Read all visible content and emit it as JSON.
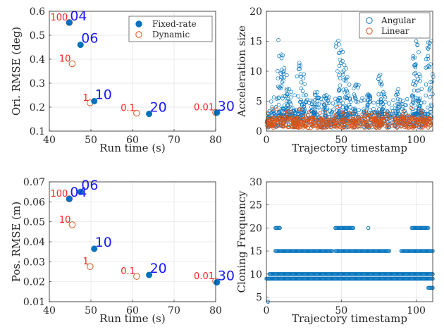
{
  "colors": {
    "fixed": "#0072BD",
    "dynamic": "#D95319",
    "angular": "#0072BD",
    "linear": "#D95319",
    "annot_red": "#ff2020",
    "annot_blue": "#1a1aff"
  },
  "chart_data": [
    {
      "id": "ori",
      "type": "scatter",
      "xlabel": "Run time (s)",
      "ylabel": "Ori. RMSE (deg)",
      "xlim": [
        40,
        80
      ],
      "ylim": [
        0.1,
        0.6
      ],
      "xticks": [
        40,
        50,
        60,
        70,
        80
      ],
      "yticks": [
        0.1,
        0.2,
        0.3,
        0.4,
        0.5,
        0.6
      ],
      "grid": true,
      "legend_position": "top-right",
      "series": [
        {
          "name": "Fixed-rate",
          "marker": "filled",
          "x": [
            44.8,
            47.5,
            50.8,
            64.0,
            80.3
          ],
          "y": [
            0.553,
            0.46,
            0.225,
            0.172,
            0.177
          ],
          "labels": [
            "04",
            "06",
            "10",
            "20",
            "30"
          ]
        },
        {
          "name": "Dynamic",
          "marker": "open",
          "x": [
            44.8,
            45.5,
            49.8,
            61.0,
            80.0
          ],
          "y": [
            0.553,
            0.381,
            0.218,
            0.175,
            0.178
          ],
          "labels": [
            "100",
            "10",
            "1",
            "0.1",
            "0.01"
          ]
        }
      ]
    },
    {
      "id": "accel",
      "type": "scatter",
      "xlabel": "Trajectory timestamp",
      "ylabel": "Acceleration size",
      "xlim": [
        0,
        111
      ],
      "ylim": [
        0,
        20
      ],
      "xticks": [
        0,
        50,
        100
      ],
      "yticks": [
        0,
        5,
        10,
        15,
        20
      ],
      "grid": true,
      "legend_position": "top-right",
      "series": [
        {
          "name": "Angular",
          "marker": "open"
        },
        {
          "name": "Linear",
          "marker": "open"
        }
      ],
      "peaks": [
        {
          "x": 8,
          "y": 15.2
        },
        {
          "x": 10,
          "y": 12.8
        },
        {
          "x": 12,
          "y": 10.5
        },
        {
          "x": 15,
          "y": 7.0
        },
        {
          "x": 22,
          "y": 11.4
        },
        {
          "x": 25,
          "y": 9.5
        },
        {
          "x": 34,
          "y": 6.5
        },
        {
          "x": 40,
          "y": 6.0
        },
        {
          "x": 48,
          "y": 15.1
        },
        {
          "x": 50,
          "y": 13.5
        },
        {
          "x": 52,
          "y": 11.0
        },
        {
          "x": 54,
          "y": 9.0
        },
        {
          "x": 60,
          "y": 7.8
        },
        {
          "x": 68,
          "y": 6.0
        },
        {
          "x": 76,
          "y": 9.4
        },
        {
          "x": 78,
          "y": 6.5
        },
        {
          "x": 88,
          "y": 7.0
        },
        {
          "x": 98,
          "y": 12.5
        },
        {
          "x": 100,
          "y": 15.0
        },
        {
          "x": 102,
          "y": 9.5
        },
        {
          "x": 108,
          "y": 14.8
        },
        {
          "x": 110,
          "y": 15.1
        }
      ]
    },
    {
      "id": "pos",
      "type": "scatter",
      "xlabel": "Run time (s)",
      "ylabel": "Pos. RMSE (m)",
      "xlim": [
        40,
        80
      ],
      "ylim": [
        0.01,
        0.07
      ],
      "xticks": [
        40,
        50,
        60,
        70,
        80
      ],
      "yticks": [
        0.01,
        0.02,
        0.03,
        0.04,
        0.05,
        0.06,
        0.07
      ],
      "grid": true,
      "series": [
        {
          "name": "Fixed-rate",
          "marker": "filled",
          "x": [
            44.8,
            47.5,
            50.8,
            64.0,
            80.3
          ],
          "y": [
            0.0615,
            0.065,
            0.0365,
            0.0234,
            0.0197
          ],
          "labels": [
            "04",
            "06",
            "10",
            "20",
            "30"
          ]
        },
        {
          "name": "Dynamic",
          "marker": "open",
          "x": [
            44.8,
            45.5,
            49.8,
            61.0,
            80.0
          ],
          "y": [
            0.0615,
            0.0485,
            0.0276,
            0.0227,
            0.0203
          ],
          "labels": [
            "100",
            "10",
            "1",
            "0.1",
            "0.01"
          ]
        }
      ]
    },
    {
      "id": "clone",
      "type": "scatter",
      "xlabel": "Trajectory timestamp",
      "ylabel": "Cloning Frequency",
      "xlim": [
        0,
        111
      ],
      "ylim": [
        4,
        30
      ],
      "xticks": [
        0,
        50,
        100
      ],
      "yticks": [
        5,
        10,
        15,
        20,
        25,
        30
      ],
      "grid": true,
      "series": [
        {
          "name": "",
          "marker": "open",
          "levels": [
            4,
            7,
            9,
            10,
            15,
            20
          ],
          "segments": {
            "9": [
              [
                0,
                111
              ]
            ],
            "10": [
              [
                2,
                111
              ]
            ],
            "15": [
              [
                6,
                44
              ],
              [
                46,
                82
              ],
              [
                90,
                111
              ]
            ],
            "20": [
              [
                6,
                9
              ],
              [
                46,
                58
              ],
              [
                68,
                68
              ],
              [
                97,
                108
              ]
            ],
            "7": [
              [
                108,
                111
              ]
            ],
            "4": [
              [
                1,
                1
              ]
            ]
          }
        }
      ]
    }
  ]
}
